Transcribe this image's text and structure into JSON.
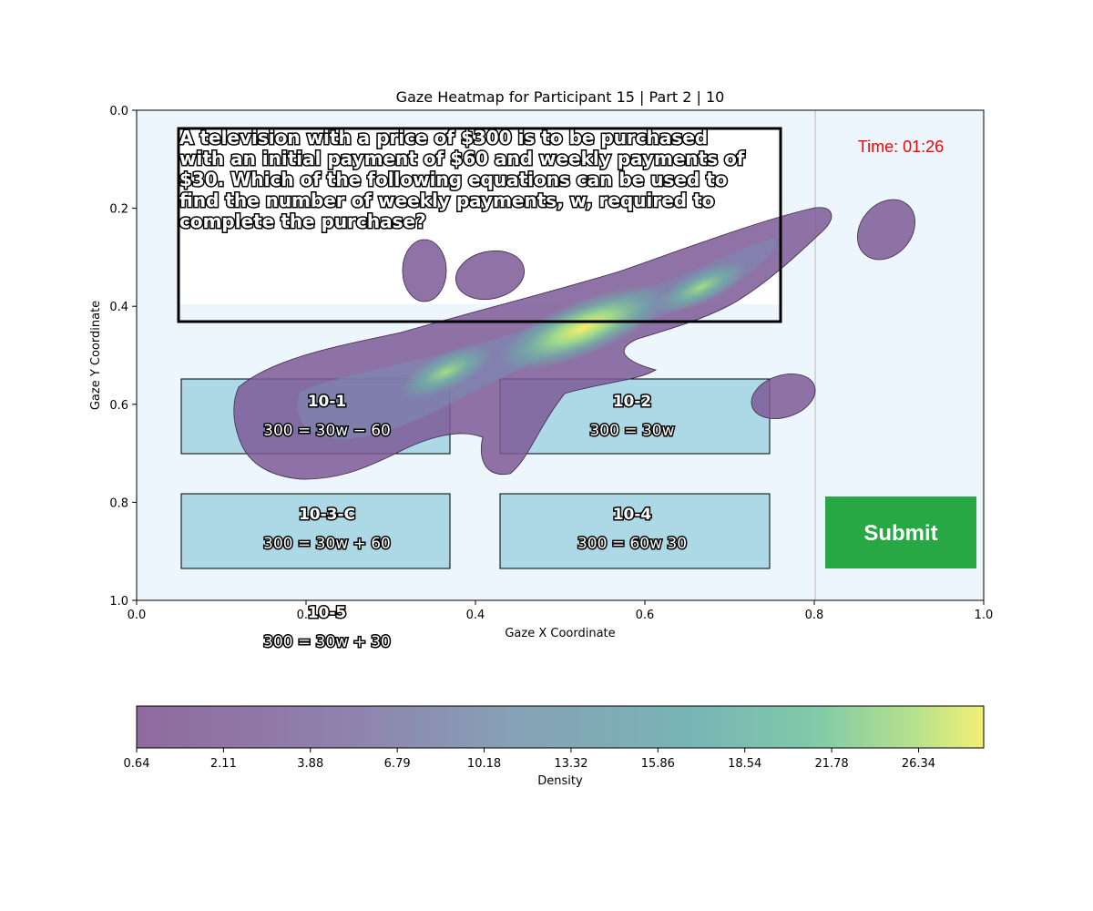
{
  "chart_data": {
    "type": "heatmap",
    "title": "Gaze Heatmap for Participant 15 | Part 2 | 10",
    "xlabel": "Gaze X Coordinate",
    "ylabel": "Gaze Y Coordinate",
    "xlim": [
      0.0,
      1.0
    ],
    "ylim": [
      1.0,
      0.0
    ],
    "y_inverted": true,
    "x_ticks": [
      "0.0",
      "0.2",
      "0.4",
      "0.6",
      "0.8",
      "1.0"
    ],
    "y_ticks": [
      "0.0",
      "0.2",
      "0.4",
      "0.6",
      "0.8",
      "1.0"
    ],
    "grid": false,
    "colormap": "viridis",
    "colorbar": {
      "label": "Density",
      "ticks": [
        "0.64",
        "2.11",
        "3.88",
        "6.79",
        "10.18",
        "13.32",
        "15.86",
        "18.54",
        "21.78",
        "26.34"
      ]
    },
    "density_peaks": [
      {
        "x": 0.53,
        "y": 0.45,
        "level": "high"
      },
      {
        "x": 0.37,
        "y": 0.53,
        "level": "medium"
      },
      {
        "x": 0.67,
        "y": 0.36,
        "level": "medium"
      },
      {
        "x": 0.34,
        "y": 0.33,
        "level": "low"
      },
      {
        "x": 0.41,
        "y": 0.34,
        "level": "low"
      },
      {
        "x": 0.89,
        "y": 0.25,
        "level": "low"
      },
      {
        "x": 0.77,
        "y": 0.59,
        "level": "low"
      }
    ],
    "stimulus": {
      "question": [
        "A television with a price of $300 is to be purchased",
        "with an initial payment of $60 and weekly payments of",
        "$30. Which of the following equations can be used to",
        "find the number of weekly payments, w, required to",
        "complete the purchase?"
      ],
      "timer": "Time: 01:26",
      "submit_label": "Submit",
      "options": [
        {
          "label": "10-1",
          "equation": "300 = 30w − 60"
        },
        {
          "label": "10-2",
          "equation": "300 = 30w"
        },
        {
          "label": "10-3-C",
          "equation": "300 = 30w + 60"
        },
        {
          "label": "10-4",
          "equation": "300 = 60w 30"
        },
        {
          "label": "10-5",
          "equation": "300 = 30w + 30"
        }
      ]
    },
    "colors": {
      "background": "#eef6fd",
      "option_fill": "#add8e6",
      "submit_fill": "#28a745",
      "timer_text": "#ff0000"
    }
  }
}
